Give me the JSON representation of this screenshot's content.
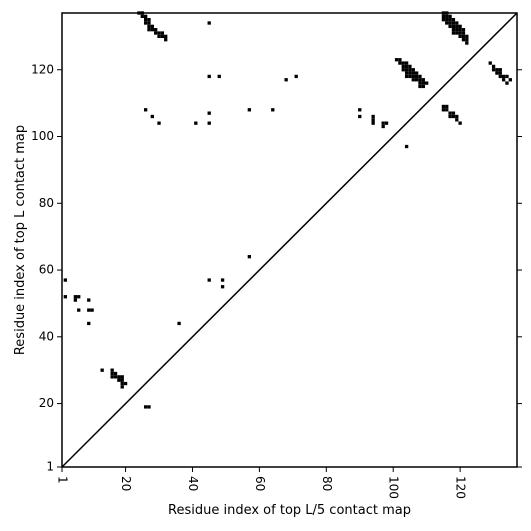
{
  "chart_data": {
    "type": "scatter",
    "xlabel": "Residue index of top L/5 contact map",
    "ylabel": "Residue index of top L contact map",
    "xlim": [
      1,
      137
    ],
    "ylim": [
      1,
      137
    ],
    "x_ticks": [
      1,
      20,
      40,
      60,
      80,
      100,
      120
    ],
    "y_ticks": [
      1,
      20,
      40,
      60,
      80,
      100,
      120
    ],
    "grid": false,
    "diagonal": true,
    "lower_points": [
      [
        2,
        57
      ],
      [
        2,
        52
      ],
      [
        5,
        52
      ],
      [
        5,
        51
      ],
      [
        6,
        52
      ],
      [
        6,
        48
      ],
      [
        9,
        51
      ],
      [
        9,
        48
      ],
      [
        10,
        48
      ],
      [
        9,
        44
      ],
      [
        13,
        30
      ],
      [
        16,
        30
      ],
      [
        16,
        29
      ],
      [
        16,
        28
      ],
      [
        17,
        28
      ],
      [
        17,
        29
      ],
      [
        18,
        28
      ],
      [
        18,
        27
      ],
      [
        19,
        28
      ],
      [
        19,
        27
      ],
      [
        19,
        26
      ],
      [
        19,
        25
      ],
      [
        20,
        26
      ],
      [
        26,
        19
      ],
      [
        27,
        19
      ],
      [
        36,
        44
      ],
      [
        45,
        57
      ],
      [
        49,
        57
      ],
      [
        49,
        55
      ],
      [
        57,
        64
      ]
    ],
    "upper_points": [
      [
        24,
        137
      ],
      [
        25,
        137
      ],
      [
        25,
        136
      ],
      [
        26,
        136
      ],
      [
        26,
        135
      ],
      [
        26,
        134
      ],
      [
        27,
        135
      ],
      [
        27,
        134
      ],
      [
        27,
        133
      ],
      [
        27,
        132
      ],
      [
        28,
        133
      ],
      [
        28,
        132
      ],
      [
        29,
        132
      ],
      [
        29,
        131
      ],
      [
        30,
        131
      ],
      [
        30,
        130
      ],
      [
        31,
        131
      ],
      [
        31,
        130
      ],
      [
        32,
        130
      ],
      [
        32,
        129
      ],
      [
        45,
        134
      ],
      [
        45,
        118
      ],
      [
        48,
        118
      ],
      [
        26,
        108
      ],
      [
        28,
        106
      ],
      [
        30,
        104
      ],
      [
        41,
        104
      ],
      [
        45,
        107
      ],
      [
        45,
        104
      ],
      [
        57,
        108
      ],
      [
        64,
        108
      ],
      [
        68,
        117
      ],
      [
        71,
        118
      ],
      [
        90,
        108
      ],
      [
        90,
        106
      ],
      [
        94,
        106
      ],
      [
        94,
        105
      ],
      [
        94,
        104
      ],
      [
        97,
        104
      ],
      [
        97,
        103
      ],
      [
        98,
        104
      ],
      [
        101,
        123
      ],
      [
        102,
        123
      ],
      [
        102,
        122
      ],
      [
        103,
        122
      ],
      [
        103,
        121
      ],
      [
        103,
        120
      ],
      [
        104,
        122
      ],
      [
        104,
        121
      ],
      [
        104,
        120
      ],
      [
        104,
        119
      ],
      [
        104,
        118
      ],
      [
        105,
        121
      ],
      [
        105,
        120
      ],
      [
        105,
        119
      ],
      [
        105,
        118
      ],
      [
        106,
        120
      ],
      [
        106,
        119
      ],
      [
        106,
        118
      ],
      [
        106,
        117
      ],
      [
        107,
        119
      ],
      [
        107,
        118
      ],
      [
        107,
        117
      ],
      [
        108,
        118
      ],
      [
        108,
        117
      ],
      [
        108,
        116
      ],
      [
        108,
        115
      ],
      [
        109,
        117
      ],
      [
        109,
        116
      ],
      [
        109,
        115
      ],
      [
        110,
        116
      ],
      [
        104,
        97
      ],
      [
        115,
        137
      ],
      [
        115,
        136
      ],
      [
        115,
        135
      ],
      [
        116,
        137
      ],
      [
        116,
        136
      ],
      [
        116,
        135
      ],
      [
        116,
        134
      ],
      [
        117,
        136
      ],
      [
        117,
        135
      ],
      [
        117,
        134
      ],
      [
        117,
        133
      ],
      [
        118,
        135
      ],
      [
        118,
        134
      ],
      [
        118,
        133
      ],
      [
        118,
        132
      ],
      [
        118,
        131
      ],
      [
        119,
        134
      ],
      [
        119,
        133
      ],
      [
        119,
        132
      ],
      [
        119,
        131
      ],
      [
        120,
        133
      ],
      [
        120,
        132
      ],
      [
        120,
        131
      ],
      [
        120,
        130
      ],
      [
        121,
        132
      ],
      [
        121,
        131
      ],
      [
        121,
        130
      ],
      [
        121,
        129
      ],
      [
        122,
        130
      ],
      [
        122,
        129
      ],
      [
        122,
        128
      ],
      [
        115,
        109
      ],
      [
        115,
        108
      ],
      [
        116,
        109
      ],
      [
        116,
        108
      ],
      [
        117,
        107
      ],
      [
        117,
        106
      ],
      [
        118,
        107
      ],
      [
        118,
        106
      ],
      [
        119,
        106
      ],
      [
        119,
        105
      ],
      [
        120,
        104
      ],
      [
        129,
        122
      ],
      [
        130,
        121
      ],
      [
        130,
        120
      ],
      [
        131,
        120
      ],
      [
        131,
        119
      ],
      [
        132,
        120
      ],
      [
        132,
        119
      ],
      [
        132,
        118
      ],
      [
        133,
        118
      ],
      [
        133,
        117
      ],
      [
        134,
        118
      ],
      [
        134,
        116
      ],
      [
        135,
        117
      ]
    ]
  }
}
